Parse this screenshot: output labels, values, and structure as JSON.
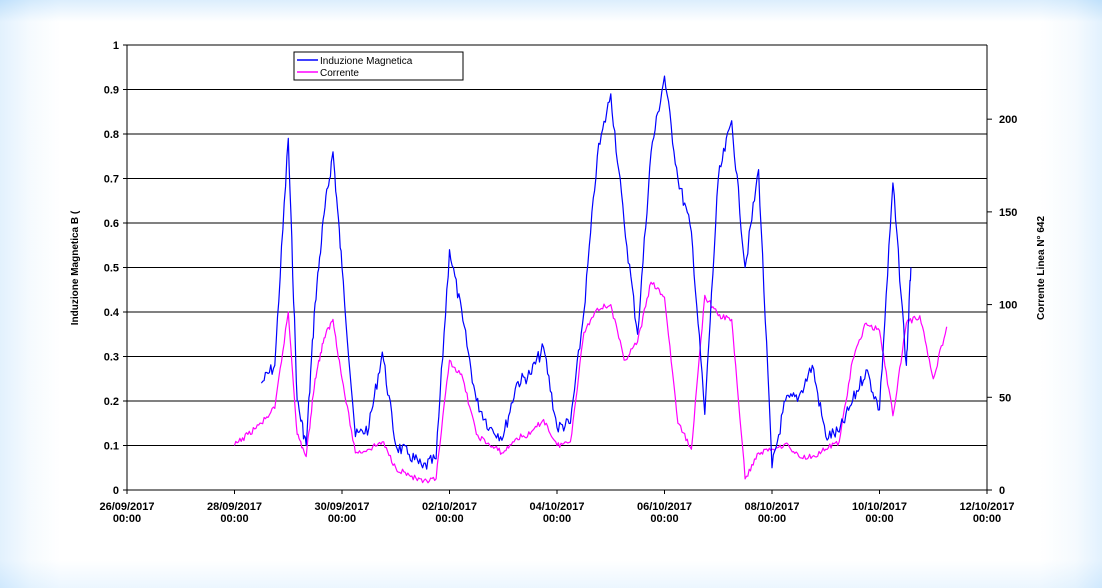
{
  "chart_data": {
    "type": "line",
    "title": "",
    "xlabel": "",
    "ylabel": "Induzione Magnetica B (",
    "y2label": "Corrente Linea N° 642",
    "ylim": [
      0,
      1
    ],
    "y2lim": [
      0,
      240
    ],
    "yticks": [
      "0",
      "0.1",
      "0.2",
      "0.3",
      "0.4",
      "0.5",
      "0.6",
      "0.7",
      "0.8",
      "0.9",
      "1"
    ],
    "y2ticks": [
      "0",
      "50",
      "100",
      "150",
      "200"
    ],
    "xlim": [
      "2017-09-26 00:00",
      "2017-10-12 00:00"
    ],
    "xticks": [
      {
        "date": "26/09/2017",
        "time": "00:00"
      },
      {
        "date": "28/09/2017",
        "time": "00:00"
      },
      {
        "date": "30/09/2017",
        "time": "00:00"
      },
      {
        "date": "02/10/2017",
        "time": "00:00"
      },
      {
        "date": "04/10/2017",
        "time": "00:00"
      },
      {
        "date": "06/10/2017",
        "time": "00:00"
      },
      {
        "date": "08/10/2017",
        "time": "00:00"
      },
      {
        "date": "10/10/2017",
        "time": "00:00"
      },
      {
        "date": "12/10/2017",
        "time": "00:00"
      }
    ],
    "grid": "horizontal",
    "legend_position": "top-left",
    "series": [
      {
        "name": "Induzione Magnetica",
        "axis": "left",
        "color": "#0000ff",
        "x": [
          "2017-09-28 12:00",
          "2017-09-28 18:00",
          "2017-09-29 00:00",
          "2017-09-29 04:00",
          "2017-09-29 08:00",
          "2017-09-29 12:00",
          "2017-09-29 16:00",
          "2017-09-29 20:00",
          "2017-09-30 00:00",
          "2017-09-30 06:00",
          "2017-09-30 12:00",
          "2017-09-30 18:00",
          "2017-10-01 00:00",
          "2017-10-01 06:00",
          "2017-10-01 12:00",
          "2017-10-01 18:00",
          "2017-10-02 00:00",
          "2017-10-02 06:00",
          "2017-10-02 12:00",
          "2017-10-02 18:00",
          "2017-10-03 00:00",
          "2017-10-03 06:00",
          "2017-10-03 12:00",
          "2017-10-03 18:00",
          "2017-10-04 00:00",
          "2017-10-04 06:00",
          "2017-10-04 12:00",
          "2017-10-04 18:00",
          "2017-10-05 00:00",
          "2017-10-05 06:00",
          "2017-10-05 12:00",
          "2017-10-05 18:00",
          "2017-10-06 00:00",
          "2017-10-06 06:00",
          "2017-10-06 12:00",
          "2017-10-06 18:00",
          "2017-10-07 00:00",
          "2017-10-07 06:00",
          "2017-10-07 12:00",
          "2017-10-07 18:00",
          "2017-10-08 00:00",
          "2017-10-08 06:00",
          "2017-10-08 12:00",
          "2017-10-08 18:00",
          "2017-10-09 00:00",
          "2017-10-09 06:00",
          "2017-10-09 12:00",
          "2017-10-09 18:00",
          "2017-10-10 00:00",
          "2017-10-10 06:00",
          "2017-10-10 12:00",
          "2017-10-10 14:00"
        ],
        "values": [
          0.24,
          0.28,
          0.79,
          0.2,
          0.1,
          0.42,
          0.62,
          0.76,
          0.5,
          0.12,
          0.14,
          0.31,
          0.1,
          0.08,
          0.05,
          0.07,
          0.54,
          0.38,
          0.2,
          0.14,
          0.12,
          0.24,
          0.26,
          0.32,
          0.14,
          0.15,
          0.4,
          0.75,
          0.89,
          0.6,
          0.35,
          0.76,
          0.93,
          0.7,
          0.58,
          0.17,
          0.7,
          0.83,
          0.5,
          0.72,
          0.05,
          0.2,
          0.21,
          0.28,
          0.12,
          0.13,
          0.2,
          0.27,
          0.18,
          0.69,
          0.28,
          0.5
        ]
      },
      {
        "name": "Corrente",
        "axis": "right",
        "color": "#ff00ff",
        "x": [
          "2017-09-28 00:00",
          "2017-09-28 06:00",
          "2017-09-28 12:00",
          "2017-09-28 18:00",
          "2017-09-29 00:00",
          "2017-09-29 04:00",
          "2017-09-29 08:00",
          "2017-09-29 12:00",
          "2017-09-29 16:00",
          "2017-09-29 20:00",
          "2017-09-30 00:00",
          "2017-09-30 06:00",
          "2017-09-30 12:00",
          "2017-09-30 18:00",
          "2017-10-01 00:00",
          "2017-10-01 06:00",
          "2017-10-01 12:00",
          "2017-10-01 18:00",
          "2017-10-02 00:00",
          "2017-10-02 06:00",
          "2017-10-02 12:00",
          "2017-10-02 18:00",
          "2017-10-03 00:00",
          "2017-10-03 06:00",
          "2017-10-03 12:00",
          "2017-10-03 18:00",
          "2017-10-04 00:00",
          "2017-10-04 06:00",
          "2017-10-04 12:00",
          "2017-10-04 18:00",
          "2017-10-05 00:00",
          "2017-10-05 06:00",
          "2017-10-05 12:00",
          "2017-10-05 18:00",
          "2017-10-06 00:00",
          "2017-10-06 06:00",
          "2017-10-06 12:00",
          "2017-10-06 18:00",
          "2017-10-07 00:00",
          "2017-10-07 06:00",
          "2017-10-07 12:00",
          "2017-10-07 18:00",
          "2017-10-08 00:00",
          "2017-10-08 06:00",
          "2017-10-08 12:00",
          "2017-10-08 18:00",
          "2017-10-09 00:00",
          "2017-10-09 06:00",
          "2017-10-09 12:00",
          "2017-10-09 18:00",
          "2017-10-10 00:00",
          "2017-10-10 06:00",
          "2017-10-10 12:00",
          "2017-10-10 18:00",
          "2017-10-11 00:00",
          "2017-10-11 06:00"
        ],
        "values": [
          24,
          30,
          36,
          44,
          96,
          30,
          18,
          60,
          82,
          92,
          60,
          20,
          22,
          26,
          12,
          8,
          4,
          6,
          70,
          60,
          30,
          24,
          20,
          28,
          30,
          38,
          24,
          26,
          85,
          98,
          100,
          70,
          80,
          112,
          104,
          36,
          22,
          105,
          94,
          92,
          6,
          20,
          22,
          25,
          18,
          18,
          22,
          26,
          70,
          90,
          86,
          40,
          90,
          94,
          60,
          88
        ]
      }
    ]
  }
}
